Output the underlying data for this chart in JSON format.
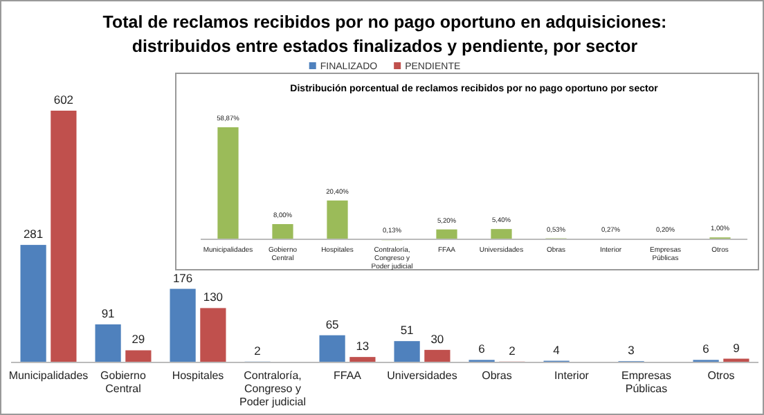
{
  "chart_data": [
    {
      "type": "bar",
      "title": "Total de reclamos recibidos por no pago  oportuno en adquisiciones: distribuidos entre estados finalizados y pendiente, por sector",
      "categories": [
        "Municipalidades",
        "Gobierno Central",
        "Hospitales",
        "Contraloría, Congreso y Poder judicial",
        "FFAA",
        "Universidades",
        "Obras",
        "Interior",
        "Empresas Públicas",
        "Otros"
      ],
      "series": [
        {
          "name": "FINALIZADO",
          "color": "#4f81bd",
          "values": [
            281,
            91,
            176,
            2,
            65,
            51,
            6,
            4,
            3,
            6
          ]
        },
        {
          "name": "PENDIENTE",
          "color": "#c0504d",
          "values": [
            602,
            29,
            130,
            null,
            13,
            30,
            2,
            null,
            null,
            9
          ]
        }
      ],
      "data_labels": true,
      "legend": "top"
    },
    {
      "type": "bar",
      "title": "Distribución porcentual de reclamos recibidos por no pago oportuno por sector",
      "categories": [
        "Municipalidades",
        "Gobierno Central",
        "Hospitales",
        "Contraloría, Congreso y Poder judicial",
        "FFAA",
        "Universidades",
        "Obras",
        "Interior",
        "Empresas Públicas",
        "Otros"
      ],
      "series": [
        {
          "color": "#9bbb59",
          "values": [
            58.87,
            8.0,
            20.4,
            0.13,
            5.2,
            5.4,
            0.53,
            0.27,
            0.2,
            1.0
          ],
          "value_labels": [
            "58,87%",
            "8,00%",
            "20,40%",
            "0,13%",
            "5,20%",
            "5,40%",
            "0,53%",
            "0,27%",
            "0,20%",
            "1,00%"
          ]
        }
      ]
    }
  ]
}
